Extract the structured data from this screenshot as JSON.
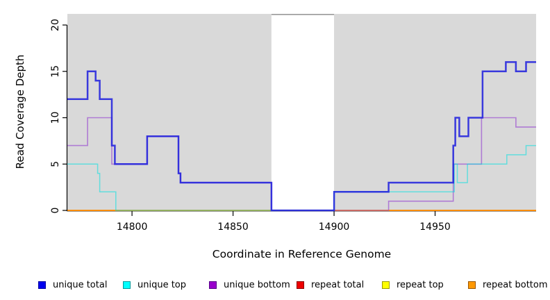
{
  "chart_data": {
    "type": "line",
    "subtype": "step-coverage",
    "title": "",
    "xlabel": "Coordinate in Reference Genome",
    "ylabel": "Read Coverage Depth",
    "xlim": [
      14768,
      15000
    ],
    "ylim": [
      0,
      21.2
    ],
    "x_ticks": [
      14800,
      14850,
      14900,
      14950
    ],
    "y_ticks": [
      0,
      5,
      10,
      15,
      20
    ],
    "grid": false,
    "plot_bg_color": "#d9d9d9",
    "axis_color": "#000000",
    "gap_region": {
      "x_start": 14869,
      "x_end": 14900,
      "fill": "#ffffff",
      "top_border_color": "#999999"
    },
    "series": [
      {
        "name": "unique total",
        "color": "#2222dd",
        "width": 2.5,
        "opacity": 0.88,
        "steps": [
          [
            14768,
            12
          ],
          [
            14778,
            15
          ],
          [
            14782,
            14
          ],
          [
            14784,
            12
          ],
          [
            14790,
            7
          ],
          [
            14791.5,
            5
          ],
          [
            14807.5,
            8
          ],
          [
            14823,
            4
          ],
          [
            14824,
            3
          ],
          [
            14869,
            0
          ],
          [
            14900,
            2
          ],
          [
            14927,
            3
          ],
          [
            14959,
            7
          ],
          [
            14960,
            10
          ],
          [
            14962,
            8
          ],
          [
            14966.5,
            10
          ],
          [
            14973.5,
            15
          ],
          [
            14985,
            16
          ],
          [
            14990,
            15
          ],
          [
            14995,
            16
          ]
        ]
      },
      {
        "name": "unique top",
        "color": "#00e0e0",
        "width": 1.5,
        "opacity": 0.55,
        "steps": [
          [
            14768,
            5
          ],
          [
            14783,
            4
          ],
          [
            14784,
            2
          ],
          [
            14792,
            0
          ],
          [
            14900,
            2
          ],
          [
            14959.5,
            5
          ],
          [
            14961,
            3
          ],
          [
            14966,
            5
          ],
          [
            14985.5,
            6
          ],
          [
            14995,
            7
          ]
        ]
      },
      {
        "name": "unique bottom",
        "color": "#9440d0",
        "width": 1.6,
        "opacity": 0.62,
        "steps": [
          [
            14768,
            7
          ],
          [
            14778,
            10
          ],
          [
            14790,
            5
          ],
          [
            14807.5,
            8
          ],
          [
            14823,
            4
          ],
          [
            14824,
            3
          ],
          [
            14869,
            0
          ],
          [
            14927,
            1
          ],
          [
            14959,
            5
          ],
          [
            14973,
            10
          ],
          [
            14990,
            9
          ]
        ]
      },
      {
        "name": "repeat total",
        "color": "#dd1111",
        "width": 1.4,
        "opacity": 1,
        "steps": [
          [
            14768,
            0
          ]
        ]
      },
      {
        "name": "repeat top",
        "color": "#ffee00",
        "width": 1.4,
        "opacity": 1,
        "steps": [
          [
            14768,
            0
          ]
        ]
      },
      {
        "name": "repeat bottom",
        "color": "#ff8c00",
        "width": 1.8,
        "opacity": 1,
        "steps": [
          [
            14768,
            0
          ]
        ]
      }
    ],
    "draw_order": [
      "repeat total",
      "repeat top",
      "repeat bottom",
      "unique bottom",
      "unique top",
      "unique total"
    ],
    "legend": [
      {
        "label": "unique total",
        "fill": "#0000ee",
        "border": "#0000a0"
      },
      {
        "label": "unique top",
        "fill": "#00ffff",
        "border": "#009999"
      },
      {
        "label": "unique bottom",
        "fill": "#9900cc",
        "border": "#550088"
      },
      {
        "label": "repeat total",
        "fill": "#ee0000",
        "border": "#880000"
      },
      {
        "label": "repeat top",
        "fill": "#ffff00",
        "border": "#999900"
      },
      {
        "label": "repeat bottom",
        "fill": "#ff9900",
        "border": "#995500"
      }
    ]
  }
}
